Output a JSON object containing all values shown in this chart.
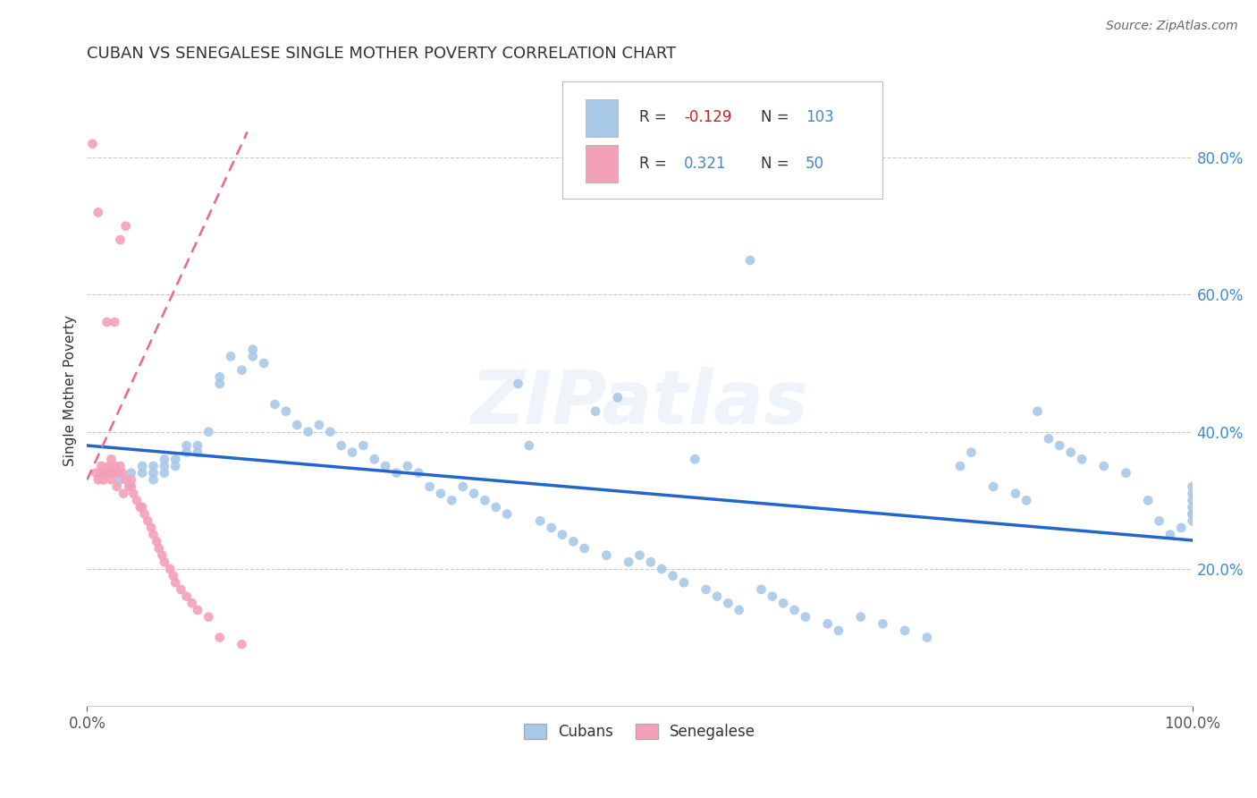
{
  "title": "CUBAN VS SENEGALESE SINGLE MOTHER POVERTY CORRELATION CHART",
  "source": "Source: ZipAtlas.com",
  "ylabel": "Single Mother Poverty",
  "cuban_R": -0.129,
  "cuban_N": 103,
  "senegalese_R": 0.321,
  "senegalese_N": 50,
  "cuban_color": "#a8c8e8",
  "senegalese_color": "#f4a0b8",
  "trendline_cuban_color": "#2266cc",
  "trendline_senegalese_color": "#ee6688",
  "background_color": "#ffffff",
  "grid_color": "#bbbbbb",
  "watermark": "ZIPatlas",
  "ytick_color": "#4488cc",
  "title_color": "#333333",
  "cuban_x": [
    0.02,
    0.03,
    0.04,
    0.05,
    0.05,
    0.06,
    0.06,
    0.06,
    0.07,
    0.07,
    0.07,
    0.08,
    0.08,
    0.09,
    0.09,
    0.1,
    0.1,
    0.11,
    0.12,
    0.12,
    0.13,
    0.14,
    0.15,
    0.15,
    0.16,
    0.17,
    0.18,
    0.19,
    0.2,
    0.21,
    0.22,
    0.23,
    0.24,
    0.25,
    0.26,
    0.27,
    0.28,
    0.29,
    0.3,
    0.31,
    0.32,
    0.33,
    0.34,
    0.35,
    0.36,
    0.37,
    0.38,
    0.39,
    0.4,
    0.41,
    0.42,
    0.43,
    0.44,
    0.45,
    0.46,
    0.47,
    0.48,
    0.49,
    0.5,
    0.51,
    0.52,
    0.53,
    0.54,
    0.55,
    0.56,
    0.57,
    0.58,
    0.59,
    0.6,
    0.61,
    0.62,
    0.63,
    0.64,
    0.65,
    0.67,
    0.68,
    0.7,
    0.72,
    0.74,
    0.76,
    0.79,
    0.8,
    0.82,
    0.84,
    0.85,
    0.86,
    0.87,
    0.88,
    0.89,
    0.9,
    0.92,
    0.94,
    0.96,
    0.97,
    0.98,
    0.99,
    1.0,
    1.0,
    1.0,
    1.0,
    1.0,
    1.0,
    1.0
  ],
  "cuban_y": [
    0.34,
    0.33,
    0.34,
    0.34,
    0.35,
    0.34,
    0.35,
    0.33,
    0.35,
    0.36,
    0.34,
    0.36,
    0.35,
    0.38,
    0.37,
    0.38,
    0.37,
    0.4,
    0.48,
    0.47,
    0.51,
    0.49,
    0.52,
    0.51,
    0.5,
    0.44,
    0.43,
    0.41,
    0.4,
    0.41,
    0.4,
    0.38,
    0.37,
    0.38,
    0.36,
    0.35,
    0.34,
    0.35,
    0.34,
    0.32,
    0.31,
    0.3,
    0.32,
    0.31,
    0.3,
    0.29,
    0.28,
    0.47,
    0.38,
    0.27,
    0.26,
    0.25,
    0.24,
    0.23,
    0.43,
    0.22,
    0.45,
    0.21,
    0.22,
    0.21,
    0.2,
    0.19,
    0.18,
    0.36,
    0.17,
    0.16,
    0.15,
    0.14,
    0.65,
    0.17,
    0.16,
    0.15,
    0.14,
    0.13,
    0.12,
    0.11,
    0.13,
    0.12,
    0.11,
    0.1,
    0.35,
    0.37,
    0.32,
    0.31,
    0.3,
    0.43,
    0.39,
    0.38,
    0.37,
    0.36,
    0.35,
    0.34,
    0.3,
    0.27,
    0.25,
    0.26,
    0.3,
    0.28,
    0.32,
    0.29,
    0.31,
    0.27,
    0.28
  ],
  "sen_x": [
    0.005,
    0.008,
    0.01,
    0.01,
    0.012,
    0.013,
    0.015,
    0.015,
    0.018,
    0.018,
    0.02,
    0.02,
    0.022,
    0.022,
    0.025,
    0.025,
    0.025,
    0.027,
    0.028,
    0.03,
    0.03,
    0.032,
    0.033,
    0.035,
    0.035,
    0.038,
    0.04,
    0.04,
    0.042,
    0.045,
    0.048,
    0.05,
    0.052,
    0.055,
    0.058,
    0.06,
    0.063,
    0.065,
    0.068,
    0.07,
    0.075,
    0.078,
    0.08,
    0.085,
    0.09,
    0.095,
    0.1,
    0.11,
    0.12,
    0.14
  ],
  "sen_y": [
    0.82,
    0.34,
    0.33,
    0.72,
    0.34,
    0.35,
    0.34,
    0.33,
    0.34,
    0.56,
    0.35,
    0.34,
    0.36,
    0.33,
    0.35,
    0.34,
    0.56,
    0.32,
    0.34,
    0.35,
    0.68,
    0.34,
    0.31,
    0.33,
    0.7,
    0.32,
    0.33,
    0.32,
    0.31,
    0.3,
    0.29,
    0.29,
    0.28,
    0.27,
    0.26,
    0.25,
    0.24,
    0.23,
    0.22,
    0.21,
    0.2,
    0.19,
    0.18,
    0.17,
    0.16,
    0.15,
    0.14,
    0.13,
    0.1,
    0.09
  ],
  "xlim": [
    0.0,
    1.0
  ],
  "ylim": [
    0.0,
    0.92
  ],
  "ytick_vals": [
    0.2,
    0.4,
    0.6,
    0.8
  ],
  "ytick_labels": [
    "20.0%",
    "40.0%",
    "60.0%",
    "80.0%"
  ],
  "xtick_vals": [
    0.0,
    1.0
  ],
  "xtick_labels": [
    "0.0%",
    "100.0%"
  ]
}
